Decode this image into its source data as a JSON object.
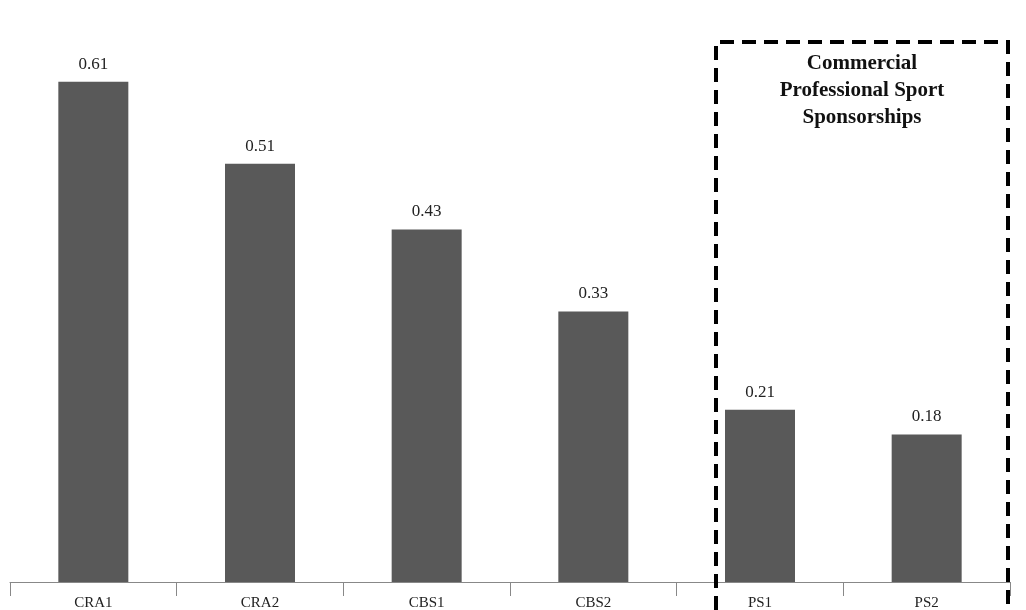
{
  "chart_data": {
    "type": "bar",
    "categories": [
      "CRA1",
      "CRA2",
      "CBS1",
      "CBS2",
      "PS1",
      "PS2"
    ],
    "values": [
      0.61,
      0.51,
      0.43,
      0.33,
      0.21,
      0.18
    ],
    "color": "#595959",
    "data_labels": true,
    "annotations": [
      "Commercial Professional Sport Sponsorships"
    ]
  }
}
